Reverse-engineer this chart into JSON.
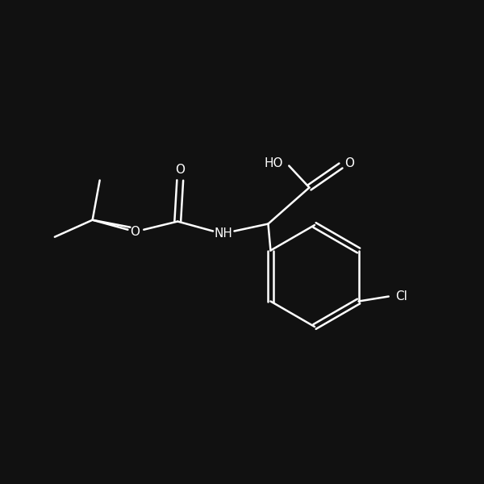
{
  "bg_color": "#111111",
  "line_color": "#ffffff",
  "text_color": "#ffffff",
  "line_width": 1.8,
  "font_size": 11,
  "figsize": [
    6.0,
    6.0
  ],
  "dpi": 100,
  "xlim": [
    0,
    10
  ],
  "ylim": [
    0,
    10
  ]
}
